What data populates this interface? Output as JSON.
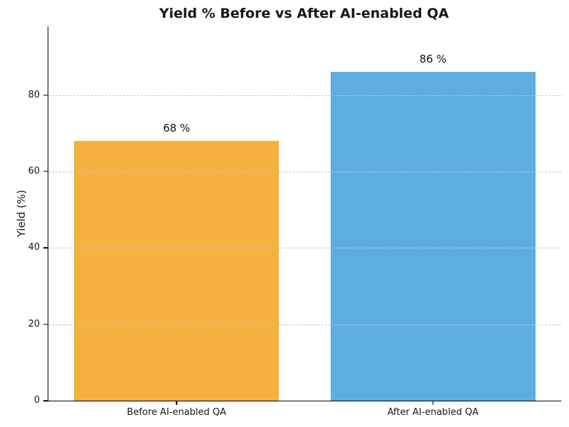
{
  "chart_data": {
    "type": "bar",
    "title": "Yield % Before vs After AI-enabled QA",
    "xlabel": "",
    "ylabel": "Yield (%)",
    "categories": [
      "Before AI-enabled QA",
      "After AI-enabled QA"
    ],
    "values": [
      68,
      86
    ],
    "bar_labels": [
      "68 %",
      "86 %"
    ],
    "bar_colors": [
      "#F5B041",
      "#5DADE2"
    ],
    "ylim": [
      0,
      98
    ],
    "yticks": [
      0,
      20,
      40,
      60,
      80
    ],
    "grid": "horizontal dashed gridlines at y ticks, drawn above bars",
    "legend": "none",
    "grid_color": "#c6c6c6",
    "text_color": "#171717"
  }
}
